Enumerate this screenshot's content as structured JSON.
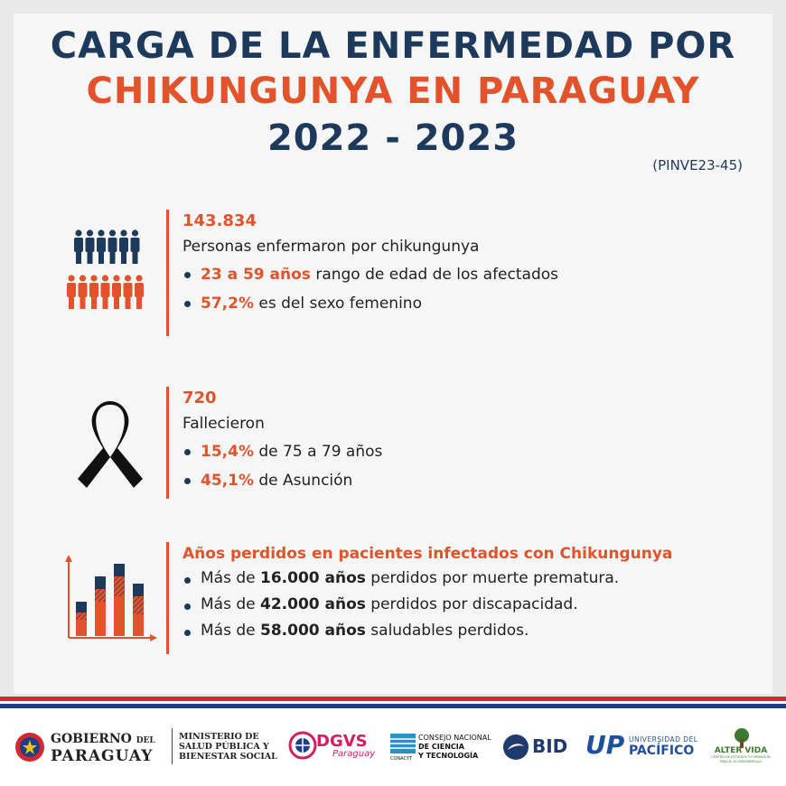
{
  "header": {
    "title_line1": "CARGA DE LA ENFERMEDAD POR",
    "title_line2": "CHIKUNGUNYA EN PARAGUAY",
    "title_line3": "2022 - 2023",
    "code": "(PINVE23-45)"
  },
  "colors": {
    "navy": "#1d3a5c",
    "orange": "#e2532b",
    "background": "#f6f6f6"
  },
  "section_sick": {
    "icon": "people-group-icon",
    "number": "143.834",
    "description": "Personas enfermaron por chikungunya",
    "bullets": [
      {
        "highlight": "23 a 59 años",
        "text": " rango de edad de los afectados"
      },
      {
        "highlight": "57,2%",
        "text": " es del sexo femenino"
      }
    ]
  },
  "section_deaths": {
    "icon": "mourning-ribbon-icon",
    "number": "720",
    "description": "Fallecieron",
    "bullets": [
      {
        "highlight": "15,4%",
        "text": " de 75 a 79 años"
      },
      {
        "highlight": "45,1%",
        "text": " de Asunción"
      }
    ]
  },
  "section_years": {
    "icon": "bar-chart-icon",
    "title": "Años perdidos en pacientes infectados con Chikungunya",
    "bullets": [
      {
        "pre": "Más de ",
        "bold": "16.000 años",
        "post": " perdidos por muerte prematura."
      },
      {
        "pre": "Más de ",
        "bold": "42.000 años",
        "post": " perdidos por discapacidad."
      },
      {
        "pre": "Más de ",
        "bold": "58.000 años",
        "post": " saludables perdidos."
      }
    ]
  },
  "footer": {
    "gobierno_line1": "GOBIERNO",
    "gobierno_del": "DEL",
    "gobierno_line2": "PARAGUAY",
    "ministerio_l1": "MINISTERIO DE",
    "ministerio_l2": "SALUD PÚBLICA Y",
    "ministerio_l3": "BIENESTAR SOCIAL",
    "dgvs": "DGVS",
    "dgvs_sub": "Paraguay",
    "conacyt_l1": "CONSEJO NACIONAL",
    "conacyt_l2": "DE CIENCIA",
    "conacyt_l3": "Y TECNOLOGÍA",
    "conacyt_tag": "CONACYT",
    "bid": "BID",
    "up_mark": "UP",
    "up_small": "UNIVERSIDAD DEL",
    "up_big": "PACÍFICO",
    "alter": "ALTER VIDA",
    "alter_sub": "CENTRO DE ESTUDIOS Y FORMACIÓN PARA EL ECODESARROLLO"
  }
}
